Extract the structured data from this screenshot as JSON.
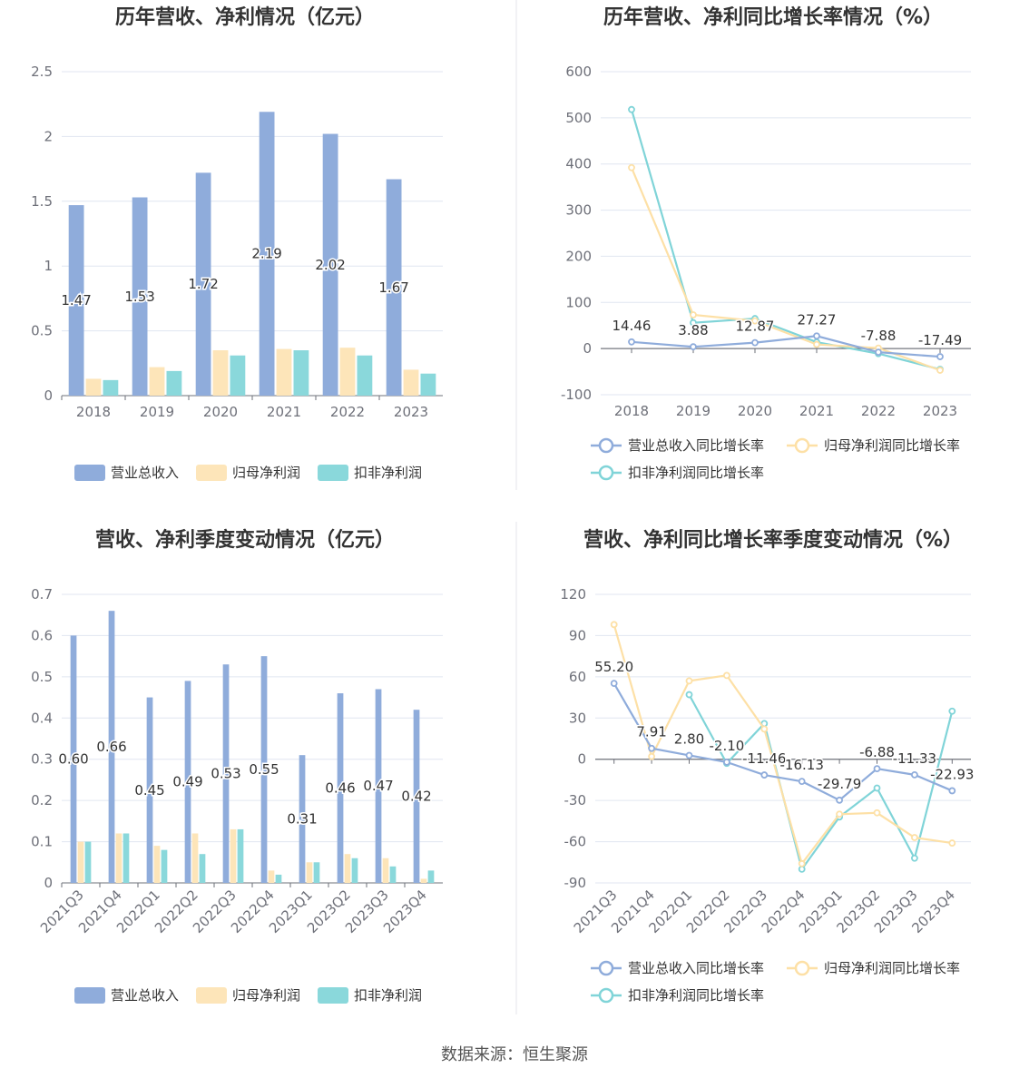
{
  "source": "数据来源：恒生聚源",
  "chart_data": [
    {
      "id": "annual-bar",
      "type": "bar",
      "title": "历年营收、净利情况（亿元）",
      "categories": [
        "2018",
        "2019",
        "2020",
        "2021",
        "2022",
        "2023"
      ],
      "yticks": [
        "0",
        "0.5",
        "1",
        "1.5",
        "2",
        "2.5"
      ],
      "ylim": [
        0,
        2.5
      ],
      "legend_position": "bottom",
      "series": [
        {
          "name": "营业总收入",
          "color": "#8facdb",
          "values": [
            1.47,
            1.53,
            1.72,
            2.19,
            2.02,
            1.67
          ],
          "labels": [
            "1.47",
            "1.53",
            "1.72",
            "2.19",
            "2.02",
            "1.67"
          ]
        },
        {
          "name": "归母净利润",
          "color": "#fde5b9",
          "values": [
            0.13,
            0.22,
            0.35,
            0.36,
            0.37,
            0.2
          ]
        },
        {
          "name": "扣非净利润",
          "color": "#8ad8db",
          "values": [
            0.12,
            0.19,
            0.31,
            0.35,
            0.31,
            0.17
          ]
        }
      ]
    },
    {
      "id": "annual-line",
      "type": "line",
      "title": "历年营收、净利同比增长率情况（%）",
      "categories": [
        "2018",
        "2019",
        "2020",
        "2021",
        "2022",
        "2023"
      ],
      "yticks": [
        "-100",
        "0",
        "100",
        "200",
        "300",
        "400",
        "500",
        "600"
      ],
      "ylim": [
        -100,
        600
      ],
      "legend_position": "bottom",
      "series": [
        {
          "name": "营业总收入同比增长率",
          "color": "#8facdb",
          "values": [
            14.46,
            3.88,
            12.87,
            27.27,
            -7.88,
            -17.49
          ],
          "labels": [
            "14.46",
            "3.88",
            "12.87",
            "27.27",
            "-7.88",
            "-17.49"
          ]
        },
        {
          "name": "归母净利润同比增长率",
          "color": "#fde0a6",
          "values": [
            392,
            73,
            60,
            9,
            1,
            -47
          ]
        },
        {
          "name": "扣非净利润同比增长率",
          "color": "#80d4d8",
          "values": [
            518,
            56,
            65,
            14,
            -11,
            -45
          ]
        }
      ]
    },
    {
      "id": "quarter-bar",
      "type": "bar",
      "title": "营收、净利季度变动情况（亿元）",
      "categories": [
        "2021Q3",
        "2021Q4",
        "2022Q1",
        "2022Q2",
        "2022Q3",
        "2022Q4",
        "2023Q1",
        "2023Q2",
        "2023Q3",
        "2023Q4"
      ],
      "yticks": [
        "0",
        "0.1",
        "0.2",
        "0.3",
        "0.4",
        "0.5",
        "0.6",
        "0.7"
      ],
      "ylim": [
        0,
        0.7
      ],
      "legend_position": "bottom",
      "series": [
        {
          "name": "营业总收入",
          "color": "#8facdb",
          "values": [
            0.6,
            0.66,
            0.45,
            0.49,
            0.53,
            0.55,
            0.31,
            0.46,
            0.47,
            0.42
          ],
          "labels": [
            "0.60",
            "0.66",
            "0.45",
            "0.49",
            "0.53",
            "0.55",
            "0.31",
            "0.46",
            "0.47",
            "0.42"
          ]
        },
        {
          "name": "归母净利润",
          "color": "#fde5b9",
          "values": [
            0.1,
            0.12,
            0.09,
            0.12,
            0.13,
            0.03,
            0.05,
            0.07,
            0.06,
            0.01
          ]
        },
        {
          "name": "扣非净利润",
          "color": "#8ad8db",
          "values": [
            0.1,
            0.12,
            0.08,
            0.07,
            0.13,
            0.02,
            0.05,
            0.06,
            0.04,
            0.03
          ]
        }
      ]
    },
    {
      "id": "quarter-line",
      "type": "line",
      "title": "营收、净利同比增长率季度变动情况（%）",
      "categories": [
        "2021Q3",
        "2021Q4",
        "2022Q1",
        "2022Q2",
        "2022Q3",
        "2022Q4",
        "2023Q1",
        "2023Q2",
        "2023Q3",
        "2023Q4"
      ],
      "yticks": [
        "-90",
        "-60",
        "-30",
        "0",
        "30",
        "60",
        "90",
        "120"
      ],
      "ylim": [
        -90,
        120
      ],
      "legend_position": "bottom",
      "series": [
        {
          "name": "营业总收入同比增长率",
          "color": "#8facdb",
          "values": [
            55.2,
            7.91,
            2.8,
            -2.1,
            -11.46,
            -16.13,
            -29.79,
            -6.88,
            -11.33,
            -22.93
          ],
          "labels": [
            "55.20",
            "7.91",
            "2.80",
            "-2.10",
            "-11.46",
            "-16.13",
            "-29.79",
            "-6.88",
            "-11.33",
            "-22.93"
          ]
        },
        {
          "name": "归母净利润同比增长率",
          "color": "#fde0a6",
          "values": [
            98,
            2,
            57,
            61,
            22,
            -76,
            -40,
            -39,
            -57,
            -61
          ]
        },
        {
          "name": "扣非净利润同比增长率",
          "color": "#80d4d8",
          "values": [
            null,
            null,
            47,
            -3,
            26,
            -80,
            -42,
            -21,
            -72,
            35
          ]
        }
      ]
    }
  ]
}
